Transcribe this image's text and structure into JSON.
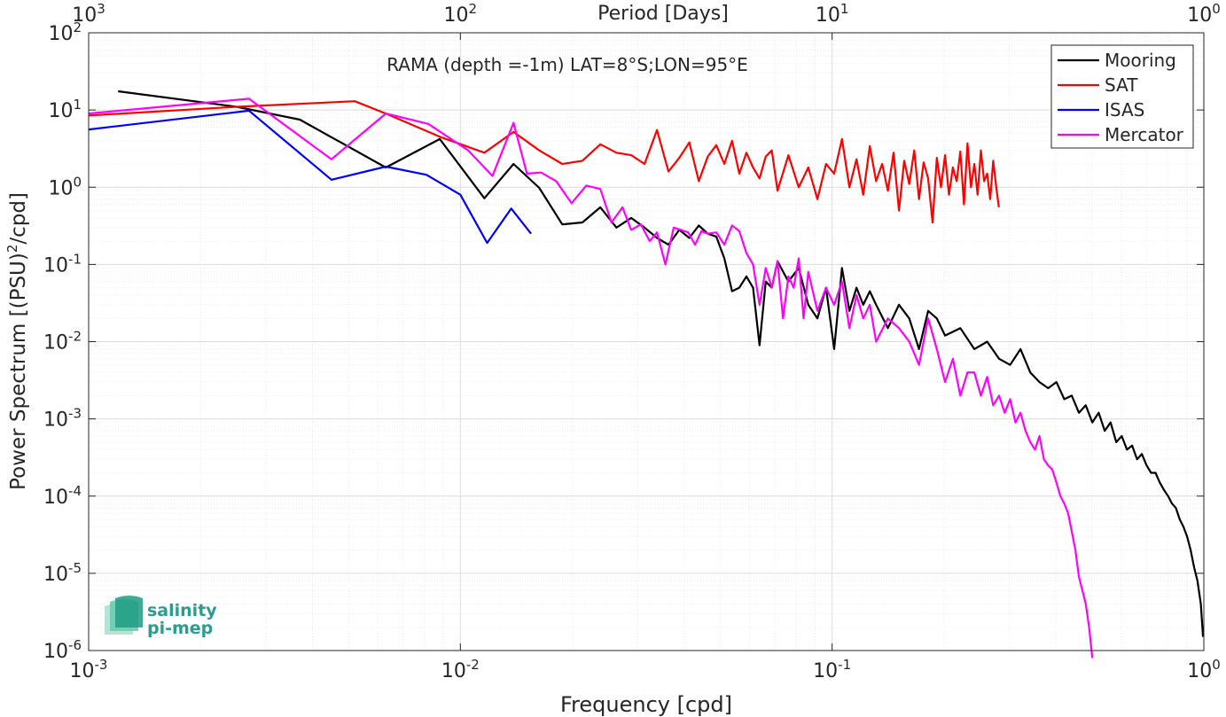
{
  "chart_data": {
    "type": "line",
    "title": "RAMA (depth =-1m) LAT=8°S;LON=95°E",
    "xlabel": "Frequency [cpd]",
    "ylabel": "Power Spectrum [(PSU)²/cpd]",
    "ylabel_main": "Power Spectrum [(PSU)",
    "ylabel_sup": "2",
    "ylabel_tail": "/cpd]",
    "top_xlabel": "Period [Days]",
    "xscale": "log",
    "yscale": "log",
    "xlim": [
      0.001,
      1
    ],
    "ylim": [
      1e-06,
      100
    ],
    "grid": true,
    "legend_position": "top-right",
    "x_ticks": [
      {
        "value": 0.001,
        "base": "10",
        "exp": "-3"
      },
      {
        "value": 0.01,
        "base": "10",
        "exp": "-2"
      },
      {
        "value": 0.1,
        "base": "10",
        "exp": "-1"
      },
      {
        "value": 1,
        "base": "10",
        "exp": "0"
      }
    ],
    "top_ticks": [
      {
        "value": 0.001,
        "base": "10",
        "exp": "3"
      },
      {
        "value": 0.01,
        "base": "10",
        "exp": "2"
      },
      {
        "value": 0.1,
        "base": "10",
        "exp": "1"
      },
      {
        "value": 1,
        "base": "10",
        "exp": "0"
      }
    ],
    "y_ticks": [
      {
        "value": 100,
        "base": "10",
        "exp": "2"
      },
      {
        "value": 10,
        "base": "10",
        "exp": "1"
      },
      {
        "value": 1,
        "base": "10",
        "exp": "0"
      },
      {
        "value": 0.1,
        "base": "10",
        "exp": "-1"
      },
      {
        "value": 0.01,
        "base": "10",
        "exp": "-2"
      },
      {
        "value": 0.001,
        "base": "10",
        "exp": "-3"
      },
      {
        "value": 0.0001,
        "base": "10",
        "exp": "-4"
      },
      {
        "value": 1e-05,
        "base": "10",
        "exp": "-5"
      },
      {
        "value": 1e-06,
        "base": "10",
        "exp": "-6"
      }
    ],
    "series": [
      {
        "name": "Mooring",
        "color": "#000000",
        "x": [
          0.0012,
          0.0025,
          0.0037,
          0.0063,
          0.0088,
          0.0116,
          0.0139,
          0.0163,
          0.0188,
          0.0213,
          0.0238,
          0.0263,
          0.0288,
          0.0313,
          0.0338,
          0.0363,
          0.0388,
          0.0413,
          0.0438,
          0.0463,
          0.0488,
          0.0513,
          0.0538,
          0.0563,
          0.0588,
          0.0613,
          0.0638,
          0.0663,
          0.0688,
          0.0713,
          0.0763,
          0.0813,
          0.0863,
          0.0913,
          0.0963,
          0.1013,
          0.1063,
          0.1113,
          0.1163,
          0.1213,
          0.1263,
          0.1313,
          0.1413,
          0.1513,
          0.1613,
          0.1713,
          0.1813,
          0.1913,
          0.2013,
          0.2213,
          0.2413,
          0.2613,
          0.2813,
          0.3013,
          0.3213,
          0.3413,
          0.3613,
          0.3813,
          0.4013,
          0.4213,
          0.4413,
          0.4613,
          0.4813,
          0.5013,
          0.5213,
          0.5413,
          0.5613,
          0.5813,
          0.6013,
          0.6213,
          0.6413,
          0.6613,
          0.6813,
          0.7013,
          0.7213,
          0.7413,
          0.7613,
          0.7813,
          0.8013,
          0.8213,
          0.8413,
          0.8613,
          0.8813,
          0.9013,
          0.9213,
          0.9413,
          0.9613,
          0.9813,
          0.995
        ],
        "y": [
          17.5,
          11.0,
          7.5,
          1.8,
          4.2,
          0.72,
          2.0,
          0.98,
          0.33,
          0.35,
          0.55,
          0.3,
          0.4,
          0.3,
          0.22,
          0.18,
          0.28,
          0.22,
          0.32,
          0.25,
          0.23,
          0.12,
          0.045,
          0.05,
          0.07,
          0.05,
          0.009,
          0.06,
          0.05,
          0.11,
          0.06,
          0.09,
          0.03,
          0.02,
          0.05,
          0.008,
          0.09,
          0.025,
          0.05,
          0.03,
          0.045,
          0.03,
          0.015,
          0.03,
          0.02,
          0.008,
          0.025,
          0.02,
          0.012,
          0.015,
          0.008,
          0.01,
          0.006,
          0.005,
          0.008,
          0.004,
          0.003,
          0.0025,
          0.003,
          0.0018,
          0.002,
          0.0012,
          0.0015,
          0.0009,
          0.0012,
          0.0007,
          0.0009,
          0.0005,
          0.0006,
          0.0004,
          0.00045,
          0.0003,
          0.00035,
          0.00025,
          0.0002,
          0.0002,
          0.00015,
          0.00012,
          0.0001,
          8e-05,
          7e-05,
          5e-05,
          4e-05,
          3e-05,
          2e-05,
          1.2e-05,
          8e-06,
          4e-06,
          1.5e-06
        ]
      },
      {
        "name": "SAT",
        "color": "#ff0000",
        "x": [
          0.001,
          0.0025,
          0.0052,
          0.0063,
          0.0088,
          0.0116,
          0.0139,
          0.0163,
          0.0188,
          0.0213,
          0.0238,
          0.0263,
          0.0288,
          0.0313,
          0.0338,
          0.0363,
          0.0388,
          0.0413,
          0.0438,
          0.0463,
          0.0488,
          0.0513,
          0.0538,
          0.0563,
          0.0588,
          0.0613,
          0.0638,
          0.0663,
          0.0688,
          0.0713,
          0.0763,
          0.0813,
          0.0863,
          0.0913,
          0.0963,
          0.1013,
          0.1063,
          0.1113,
          0.1163,
          0.1213,
          0.1263,
          0.1313,
          0.1363,
          0.1413,
          0.1463,
          0.1513,
          0.1563,
          0.1613,
          0.1663,
          0.1713,
          0.1763,
          0.1813,
          0.1863,
          0.1913,
          0.1963,
          0.2013,
          0.2063,
          0.2113,
          0.2163,
          0.2213,
          0.2263,
          0.2313,
          0.2363,
          0.2413,
          0.2463,
          0.2513,
          0.2563,
          0.2613,
          0.2663,
          0.2713,
          0.2763,
          0.281
        ],
        "y": [
          8.5,
          11.0,
          13.0,
          9.0,
          4.5,
          2.8,
          5.2,
          3.0,
          2.0,
          2.2,
          3.6,
          2.8,
          2.6,
          2.0,
          5.5,
          1.6,
          2.4,
          3.8,
          1.2,
          2.5,
          3.5,
          2.0,
          4.0,
          1.5,
          2.8,
          1.8,
          1.3,
          2.5,
          3.0,
          0.9,
          2.6,
          1.0,
          1.8,
          0.7,
          2.0,
          1.5,
          4.2,
          1.0,
          2.3,
          0.8,
          3.4,
          1.2,
          2.0,
          0.9,
          2.8,
          0.5,
          2.2,
          1.1,
          3.0,
          0.7,
          2.1,
          1.3,
          0.35,
          2.4,
          1.0,
          2.6,
          0.8,
          1.8,
          1.2,
          2.9,
          0.6,
          3.7,
          1.0,
          2.0,
          0.8,
          3.0,
          1.2,
          1.5,
          0.7,
          2.2,
          1.0,
          0.55
        ]
      },
      {
        "name": "ISAS",
        "color": "#0000ff",
        "x": [
          0.001,
          0.0027,
          0.0045,
          0.0063,
          0.0081,
          0.01,
          0.0118,
          0.0137,
          0.0155
        ],
        "y": [
          5.6,
          9.8,
          1.25,
          1.85,
          1.45,
          0.8,
          0.19,
          0.53,
          0.25
        ]
      },
      {
        "name": "Mercator",
        "color": "#ff00ff",
        "x": [
          0.001,
          0.0027,
          0.0045,
          0.0063,
          0.0082,
          0.0105,
          0.0122,
          0.0139,
          0.0151,
          0.0165,
          0.0181,
          0.0199,
          0.0218,
          0.0238,
          0.0255,
          0.0273,
          0.0288,
          0.0306,
          0.0323,
          0.0338,
          0.0356,
          0.0375,
          0.0392,
          0.041,
          0.0428,
          0.0445,
          0.0463,
          0.0488,
          0.0513,
          0.0538,
          0.0563,
          0.0588,
          0.0613,
          0.0638,
          0.0663,
          0.0688,
          0.0713,
          0.0738,
          0.0763,
          0.0788,
          0.0813,
          0.0838,
          0.0863,
          0.0913,
          0.0963,
          0.1013,
          0.1063,
          0.1113,
          0.1163,
          0.1213,
          0.1263,
          0.1313,
          0.1413,
          0.1513,
          0.1613,
          0.1713,
          0.1813,
          0.1913,
          0.2013,
          0.2113,
          0.2213,
          0.2313,
          0.2413,
          0.2513,
          0.2613,
          0.2713,
          0.2813,
          0.2913,
          0.3013,
          0.3113,
          0.3213,
          0.3313,
          0.3413,
          0.3513,
          0.3613,
          0.3713,
          0.3813,
          0.3913,
          0.4013,
          0.4113,
          0.4213,
          0.4313,
          0.4413,
          0.4513,
          0.4613,
          0.4713,
          0.4813,
          0.4913,
          0.5013
        ],
        "y": [
          9.0,
          14.0,
          2.3,
          9.0,
          6.6,
          3.0,
          1.4,
          6.8,
          1.5,
          1.55,
          1.2,
          0.62,
          1.05,
          0.95,
          0.35,
          0.55,
          0.28,
          0.33,
          0.2,
          0.26,
          0.1,
          0.3,
          0.28,
          0.26,
          0.18,
          0.27,
          0.25,
          0.26,
          0.18,
          0.32,
          0.27,
          0.14,
          0.1,
          0.03,
          0.09,
          0.05,
          0.11,
          0.02,
          0.07,
          0.05,
          0.12,
          0.02,
          0.08,
          0.025,
          0.05,
          0.03,
          0.06,
          0.015,
          0.04,
          0.02,
          0.03,
          0.01,
          0.02,
          0.015,
          0.01,
          0.005,
          0.02,
          0.008,
          0.003,
          0.006,
          0.002,
          0.004,
          0.004,
          0.002,
          0.0035,
          0.0015,
          0.002,
          0.0012,
          0.0018,
          0.0009,
          0.0012,
          0.0007,
          0.0005,
          0.0004,
          0.0006,
          0.0003,
          0.00025,
          0.00022,
          0.00015,
          0.0001,
          8e-05,
          6e-05,
          3.5e-05,
          2e-05,
          9e-06,
          6e-06,
          4e-06,
          2e-06,
          8e-07
        ]
      }
    ]
  },
  "logo": {
    "line1": "salinity",
    "line2": "pi-mep"
  }
}
